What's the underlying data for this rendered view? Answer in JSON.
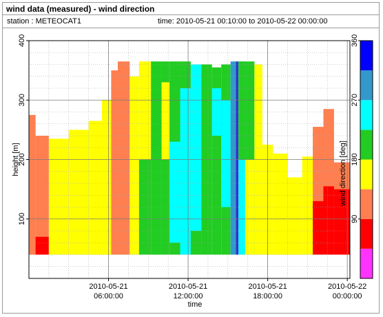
{
  "header": {
    "title": "wind data (measured) - wind direction",
    "station": "station : METEOCAT1",
    "time_range": "time: 2010-05-21 00:10:00 to 2010-05-22 00:00:00"
  },
  "chart_data": {
    "type": "heatmap",
    "xlabel": "time",
    "ylabel": "height [m]",
    "colorbar_label": "wind direction [deg]",
    "x_range_hours": [
      0,
      24.2
    ],
    "x_ticks": [
      {
        "hour": 6,
        "line1": "2010-05-21",
        "line2": "06:00:00"
      },
      {
        "hour": 12,
        "line1": "2010-05-21",
        "line2": "12:00:00"
      },
      {
        "hour": 18,
        "line1": "2010-05-21",
        "line2": "18:00:00"
      },
      {
        "hour": 24,
        "line1": "2010-05-22",
        "line2": "00:00:00"
      }
    ],
    "ylim": [
      0,
      400
    ],
    "y_ticks": [
      100,
      200,
      300,
      400
    ],
    "grid": true,
    "colorbar": {
      "range": [
        0,
        360
      ],
      "ticks": [
        90,
        180,
        270,
        360
      ],
      "bands": [
        {
          "from": 0,
          "to": 45,
          "color": "#ff33ff"
        },
        {
          "from": 45,
          "to": 90,
          "color": "#ff0000"
        },
        {
          "from": 90,
          "to": 135,
          "color": "#ff7f50"
        },
        {
          "from": 135,
          "to": 180,
          "color": "#ffff00"
        },
        {
          "from": 180,
          "to": 225,
          "color": "#22cc22"
        },
        {
          "from": 225,
          "to": 270,
          "color": "#00ffff"
        },
        {
          "from": 270,
          "to": 315,
          "color": "#3399cc"
        },
        {
          "from": 315,
          "to": 360,
          "color": "#0000ff"
        }
      ]
    },
    "columns": [
      {
        "from": 0.0,
        "to": 0.5,
        "top": 275,
        "segments": [
          {
            "from": 40,
            "to": 275,
            "color": "#ff7f50"
          }
        ]
      },
      {
        "from": 0.5,
        "to": 1.5,
        "top": 240,
        "segments": [
          {
            "from": 40,
            "to": 240,
            "color": "#ff7f50"
          },
          {
            "from": 40,
            "to": 70,
            "color": "#ff0000"
          }
        ]
      },
      {
        "from": 1.5,
        "to": 3.0,
        "top": 235,
        "segments": [
          {
            "from": 40,
            "to": 235,
            "color": "#ffff00"
          }
        ]
      },
      {
        "from": 3.0,
        "to": 4.5,
        "top": 250,
        "segments": [
          {
            "from": 40,
            "to": 250,
            "color": "#ffff00"
          }
        ]
      },
      {
        "from": 4.5,
        "to": 5.5,
        "top": 265,
        "segments": [
          {
            "from": 40,
            "to": 265,
            "color": "#ffff00"
          }
        ]
      },
      {
        "from": 5.5,
        "to": 6.2,
        "top": 300,
        "segments": [
          {
            "from": 40,
            "to": 300,
            "color": "#ffff00"
          }
        ]
      },
      {
        "from": 6.2,
        "to": 6.7,
        "top": 350,
        "segments": [
          {
            "from": 40,
            "to": 350,
            "color": "#ff7f50"
          }
        ]
      },
      {
        "from": 6.7,
        "to": 7.6,
        "top": 365,
        "segments": [
          {
            "from": 40,
            "to": 365,
            "color": "#ff7f50"
          }
        ]
      },
      {
        "from": 7.6,
        "to": 8.3,
        "top": 340,
        "segments": [
          {
            "from": 40,
            "to": 340,
            "color": "#ffff00"
          }
        ]
      },
      {
        "from": 8.3,
        "to": 9.2,
        "top": 365,
        "segments": [
          {
            "from": 40,
            "to": 365,
            "color": "#ffff00"
          },
          {
            "from": 40,
            "to": 200,
            "color": "#22cc22"
          }
        ]
      },
      {
        "from": 9.2,
        "to": 10.0,
        "top": 365,
        "segments": [
          {
            "from": 40,
            "to": 365,
            "color": "#22cc22"
          }
        ]
      },
      {
        "from": 10.0,
        "to": 10.6,
        "top": 365,
        "segments": [
          {
            "from": 40,
            "to": 365,
            "color": "#22cc22"
          },
          {
            "from": 200,
            "to": 330,
            "color": "#ffff00"
          }
        ]
      },
      {
        "from": 10.6,
        "to": 11.4,
        "top": 365,
        "segments": [
          {
            "from": 40,
            "to": 365,
            "color": "#22cc22"
          },
          {
            "from": 60,
            "to": 230,
            "color": "#00ffff"
          }
        ]
      },
      {
        "from": 11.4,
        "to": 12.2,
        "top": 365,
        "segments": [
          {
            "from": 40,
            "to": 365,
            "color": "#22cc22"
          },
          {
            "from": 40,
            "to": 320,
            "color": "#00ffff"
          }
        ]
      },
      {
        "from": 12.2,
        "to": 13.0,
        "top": 360,
        "segments": [
          {
            "from": 40,
            "to": 360,
            "color": "#00ffff"
          },
          {
            "from": 40,
            "to": 80,
            "color": "#22cc22"
          }
        ]
      },
      {
        "from": 13.0,
        "to": 13.8,
        "top": 360,
        "segments": [
          {
            "from": 40,
            "to": 360,
            "color": "#22cc22"
          }
        ]
      },
      {
        "from": 13.8,
        "to": 14.5,
        "top": 355,
        "segments": [
          {
            "from": 40,
            "to": 355,
            "color": "#22cc22"
          },
          {
            "from": 240,
            "to": 320,
            "color": "#00ffff"
          }
        ]
      },
      {
        "from": 14.5,
        "to": 15.2,
        "top": 360,
        "segments": [
          {
            "from": 40,
            "to": 360,
            "color": "#22cc22"
          },
          {
            "from": 120,
            "to": 300,
            "color": "#00ffff"
          }
        ]
      },
      {
        "from": 15.2,
        "to": 15.6,
        "top": 365,
        "segments": [
          {
            "from": 40,
            "to": 365,
            "color": "#3399cc"
          }
        ]
      },
      {
        "from": 15.6,
        "to": 15.8,
        "top": 365,
        "segments": [
          {
            "from": 40,
            "to": 365,
            "color": "#3333cc"
          }
        ]
      },
      {
        "from": 15.8,
        "to": 16.3,
        "top": 365,
        "segments": [
          {
            "from": 40,
            "to": 365,
            "color": "#00ffff"
          },
          {
            "from": 200,
            "to": 365,
            "color": "#22cc22"
          }
        ]
      },
      {
        "from": 16.3,
        "to": 17.0,
        "top": 365,
        "segments": [
          {
            "from": 40,
            "to": 365,
            "color": "#22cc22"
          },
          {
            "from": 40,
            "to": 200,
            "color": "#ffff00"
          }
        ]
      },
      {
        "from": 17.0,
        "to": 17.6,
        "top": 360,
        "segments": [
          {
            "from": 40,
            "to": 360,
            "color": "#ffff00"
          }
        ]
      },
      {
        "from": 17.6,
        "to": 18.4,
        "top": 225,
        "segments": [
          {
            "from": 40,
            "to": 225,
            "color": "#ffff00"
          }
        ]
      },
      {
        "from": 18.4,
        "to": 19.5,
        "top": 210,
        "segments": [
          {
            "from": 40,
            "to": 210,
            "color": "#ffff00"
          }
        ]
      },
      {
        "from": 19.5,
        "to": 20.6,
        "top": 170,
        "segments": [
          {
            "from": 40,
            "to": 170,
            "color": "#ffff00"
          }
        ]
      },
      {
        "from": 20.6,
        "to": 21.4,
        "top": 205,
        "segments": [
          {
            "from": 40,
            "to": 205,
            "color": "#ffff00"
          }
        ]
      },
      {
        "from": 21.4,
        "to": 22.2,
        "top": 255,
        "segments": [
          {
            "from": 40,
            "to": 255,
            "color": "#ff7f50"
          },
          {
            "from": 40,
            "to": 130,
            "color": "#ff0000"
          }
        ]
      },
      {
        "from": 22.2,
        "to": 23.0,
        "top": 285,
        "segments": [
          {
            "from": 40,
            "to": 285,
            "color": "#ff7f50"
          },
          {
            "from": 40,
            "to": 155,
            "color": "#ff0000"
          }
        ]
      },
      {
        "from": 23.0,
        "to": 24.2,
        "top": 195,
        "segments": [
          {
            "from": 40,
            "to": 195,
            "color": "#ff0000"
          },
          {
            "from": 150,
            "to": 195,
            "color": "#ff7f50"
          }
        ]
      }
    ]
  }
}
